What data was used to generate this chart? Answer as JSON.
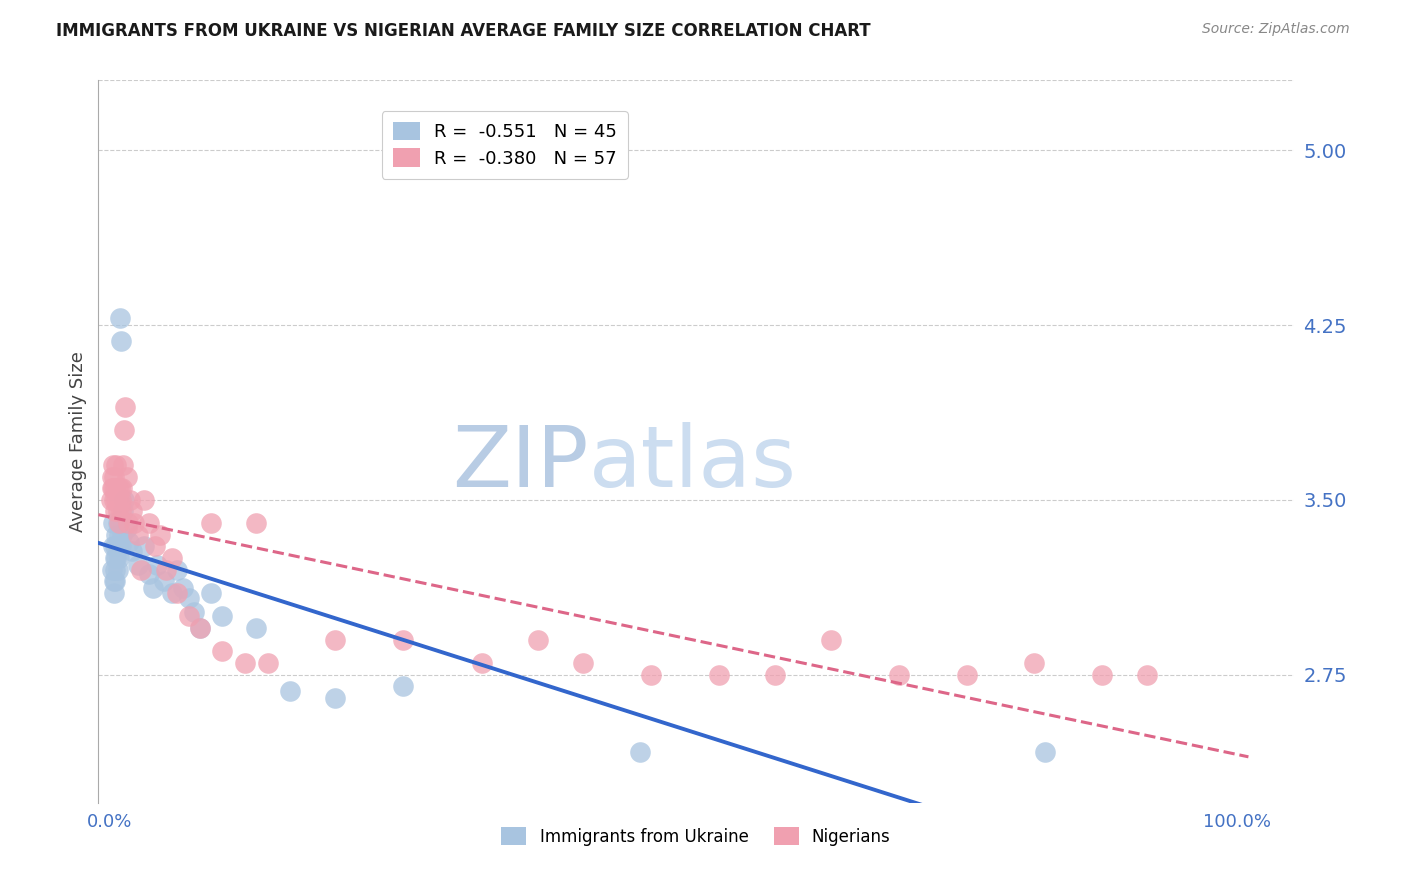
{
  "title": "IMMIGRANTS FROM UKRAINE VS NIGERIAN AVERAGE FAMILY SIZE CORRELATION CHART",
  "source": "Source: ZipAtlas.com",
  "ylabel": "Average Family Size",
  "yticks": [
    2.75,
    3.5,
    4.25,
    5.0
  ],
  "ymin": 2.2,
  "ymax": 5.3,
  "xmin": -0.01,
  "xmax": 1.05,
  "legend1_r": "-0.551",
  "legend1_n": "45",
  "legend2_r": "-0.380",
  "legend2_n": "57",
  "ukraine_color": "#a8c4e0",
  "nigeria_color": "#f0a0b0",
  "ukraine_line_color": "#3366cc",
  "nigeria_line_color": "#dd6688",
  "title_color": "#1a1a1a",
  "source_color": "#888888",
  "axis_label_color": "#4472c4",
  "watermark_zip_color": "#b8cce4",
  "watermark_atlas_color": "#ccddf0",
  "ukraine_x": [
    0.002,
    0.003,
    0.003,
    0.004,
    0.004,
    0.005,
    0.005,
    0.005,
    0.005,
    0.006,
    0.006,
    0.007,
    0.007,
    0.007,
    0.008,
    0.008,
    0.009,
    0.01,
    0.01,
    0.011,
    0.012,
    0.013,
    0.015,
    0.017,
    0.02,
    0.025,
    0.03,
    0.035,
    0.038,
    0.042,
    0.048,
    0.055,
    0.06,
    0.065,
    0.07,
    0.075,
    0.08,
    0.09,
    0.1,
    0.13,
    0.16,
    0.2,
    0.26,
    0.47,
    0.83
  ],
  "ukraine_y": [
    3.2,
    3.4,
    3.3,
    3.15,
    3.1,
    3.25,
    3.3,
    3.2,
    3.15,
    3.35,
    3.25,
    3.4,
    3.3,
    3.2,
    3.35,
    3.25,
    4.28,
    4.18,
    3.3,
    3.35,
    3.45,
    3.5,
    3.38,
    3.32,
    3.28,
    3.22,
    3.3,
    3.18,
    3.12,
    3.22,
    3.15,
    3.1,
    3.2,
    3.12,
    3.08,
    3.02,
    2.95,
    3.1,
    3.0,
    2.95,
    2.68,
    2.65,
    2.7,
    2.42,
    2.42
  ],
  "nigeria_x": [
    0.001,
    0.002,
    0.002,
    0.003,
    0.003,
    0.004,
    0.004,
    0.005,
    0.005,
    0.006,
    0.006,
    0.007,
    0.007,
    0.008,
    0.008,
    0.009,
    0.01,
    0.01,
    0.011,
    0.012,
    0.013,
    0.014,
    0.015,
    0.016,
    0.018,
    0.02,
    0.022,
    0.025,
    0.028,
    0.03,
    0.035,
    0.04,
    0.045,
    0.05,
    0.055,
    0.06,
    0.07,
    0.08,
    0.09,
    0.1,
    0.12,
    0.13,
    0.14,
    0.2,
    0.26,
    0.33,
    0.38,
    0.42,
    0.48,
    0.54,
    0.59,
    0.64,
    0.7,
    0.76,
    0.82,
    0.88,
    0.92
  ],
  "nigeria_y": [
    3.5,
    3.6,
    3.55,
    3.65,
    3.55,
    3.5,
    3.6,
    3.45,
    3.55,
    3.65,
    3.5,
    3.55,
    3.45,
    3.5,
    3.4,
    3.55,
    3.45,
    3.5,
    3.55,
    3.65,
    3.8,
    3.9,
    3.6,
    3.4,
    3.5,
    3.45,
    3.4,
    3.35,
    3.2,
    3.5,
    3.4,
    3.3,
    3.35,
    3.2,
    3.25,
    3.1,
    3.0,
    2.95,
    3.4,
    2.85,
    2.8,
    3.4,
    2.8,
    2.9,
    2.9,
    2.8,
    2.9,
    2.8,
    2.75,
    2.75,
    2.75,
    2.9,
    2.75,
    2.75,
    2.8,
    2.75,
    2.75
  ]
}
